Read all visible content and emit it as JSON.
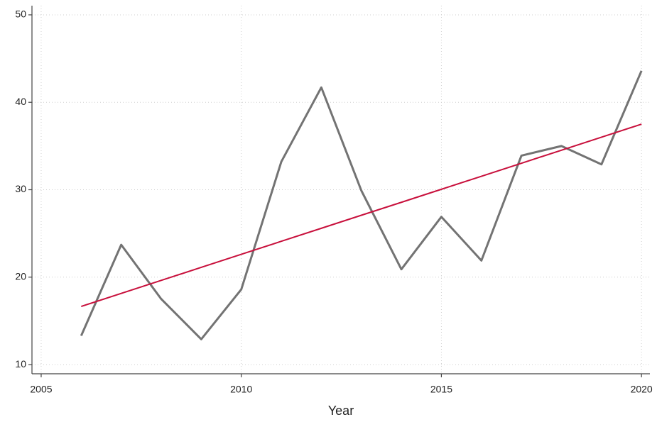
{
  "chart_data": {
    "type": "line",
    "x_label": "Year",
    "x": [
      2006,
      2007,
      2008,
      2009,
      2010,
      2011,
      2012,
      2013,
      2014,
      2015,
      2016,
      2017,
      2018,
      2019,
      2020
    ],
    "series": [
      {
        "color": "#737373",
        "values": [
          13.3,
          23.7,
          17.5,
          12.9,
          18.6,
          33.2,
          41.7,
          29.9,
          20.9,
          26.9,
          21.9,
          33.9,
          35.0,
          32.9,
          43.6
        ]
      },
      {
        "color": "#c8103c",
        "values": [
          16.65,
          18.14,
          19.63,
          21.12,
          22.61,
          24.1,
          25.59,
          27.08,
          28.56,
          30.05,
          31.54,
          33.03,
          34.52,
          36.01,
          37.5
        ]
      }
    ],
    "xlim": [
      2004.77,
      2020.21
    ],
    "ylim": [
      8.95,
      51.05
    ],
    "xticks": [
      2005,
      2010,
      2015,
      2020
    ],
    "yticks": [
      10,
      20,
      30,
      40,
      50
    ],
    "grid": true
  }
}
